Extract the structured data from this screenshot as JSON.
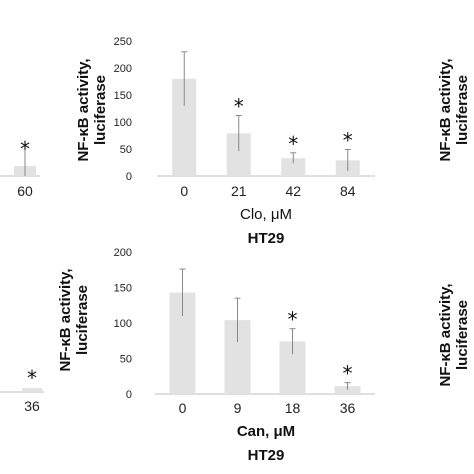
{
  "chart_data": [
    {
      "type": "bar",
      "ylabel_line1": "NF-κB activity,",
      "ylabel_line2": "luciferase",
      "yticks": [
        "250",
        "200",
        "150",
        "100",
        "50",
        "0"
      ],
      "ylim": [
        0,
        250
      ],
      "categories": [
        "0",
        "21",
        "42",
        "84"
      ],
      "values": [
        180,
        79,
        33,
        29
      ],
      "errors": [
        50,
        33,
        10,
        20
      ],
      "significant": [
        false,
        true,
        true,
        true
      ],
      "xlabel": "Clo, μM",
      "cell_line": "HT29",
      "bar_color": "#e2e2e2"
    },
    {
      "type": "bar",
      "ylabel_line1": "NF-κB activity,",
      "ylabel_line2": "luciferase",
      "yticks": [
        "200",
        "150",
        "100",
        "50",
        "0"
      ],
      "ylim": [
        0,
        200
      ],
      "categories": [
        "0",
        "9",
        "18",
        "36"
      ],
      "values": [
        143,
        104,
        74,
        11
      ],
      "errors": [
        33,
        31,
        18,
        5
      ],
      "significant": [
        false,
        false,
        true,
        true
      ],
      "xlabel": "Can, μM",
      "cell_line": "HT29",
      "bar_color": "#e2e2e2"
    }
  ],
  "partial_left_top": {
    "tick": "60",
    "star": "*"
  },
  "partial_left_bottom": {
    "tick": "36",
    "star": "*"
  },
  "partial_right_top": {
    "ylabel_line1": "NF-κB activity,",
    "ylabel_line2": "luciferase"
  },
  "partial_right_bottom": {
    "ylabel_line1": "NF-κB activity,",
    "ylabel_line2": "luciferase"
  },
  "star_symbol": "*"
}
